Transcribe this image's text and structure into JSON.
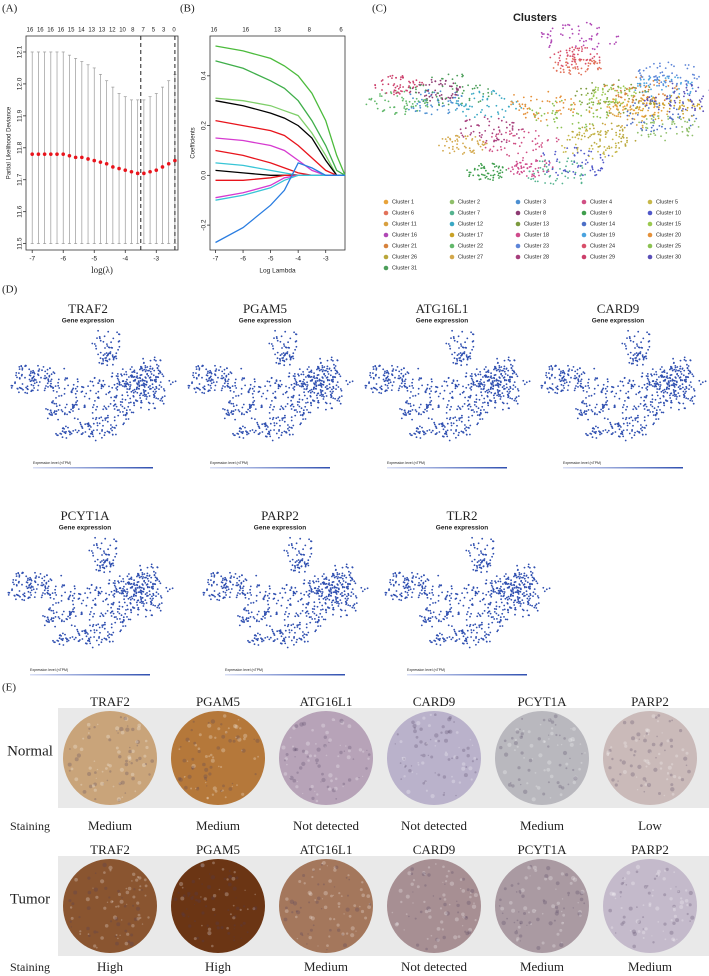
{
  "panel_a": {
    "label": "(A)",
    "top_labels": [
      16,
      16,
      16,
      16,
      15,
      14,
      13,
      13,
      12,
      10,
      8,
      7,
      5,
      3,
      0
    ],
    "x_label": "log(λ)",
    "y_label": "Partial Likelihood Deviance",
    "xlim": [
      -7.2,
      -2.3
    ],
    "ylim": [
      11.48,
      12.15
    ],
    "xticks": [
      -7,
      -6,
      -5,
      -4,
      -3
    ],
    "yticks": [
      11.5,
      11.6,
      11.7,
      11.8,
      11.9,
      {
        "value": 12.0,
        "label": "12.0"
      },
      12.1
    ],
    "x": [
      -7,
      -6.8,
      -6.6,
      -6.4,
      -6.2,
      -6,
      -5.8,
      -5.6,
      -5.4,
      -5.2,
      -5,
      -4.8,
      -4.6,
      -4.4,
      -4.2,
      -4,
      -3.8,
      -3.6,
      -3.4,
      -3.2,
      -3,
      -2.8,
      -2.6,
      -2.4
    ],
    "values": [
      11.78,
      11.78,
      11.78,
      11.78,
      11.78,
      11.78,
      11.775,
      11.77,
      11.77,
      11.765,
      11.76,
      11.755,
      11.75,
      11.74,
      11.735,
      11.73,
      11.725,
      11.72,
      11.72,
      11.725,
      11.73,
      11.74,
      11.75,
      11.76
    ],
    "upper": [
      12.1,
      12.1,
      12.1,
      12.1,
      12.1,
      12.1,
      12.09,
      12.08,
      12.07,
      12.06,
      12.05,
      12.03,
      12.01,
      11.99,
      11.97,
      11.96,
      11.95,
      11.95,
      11.95,
      11.96,
      11.97,
      11.99,
      12.01,
      12.03
    ],
    "lower": [
      11.5,
      11.5,
      11.5,
      11.5,
      11.5,
      11.5,
      11.5,
      11.5,
      11.5,
      11.5,
      11.5,
      11.5,
      11.5,
      11.5,
      11.5,
      11.5,
      11.5,
      11.5,
      11.5,
      11.5,
      11.5,
      11.5,
      11.5,
      11.5
    ],
    "point_color": "#e8141c",
    "vlines": [
      -3.5,
      -2.4
    ]
  },
  "panel_b": {
    "label": "(B)",
    "top_labels": [
      16,
      16,
      13,
      8,
      6
    ],
    "x_label": "Log Lambda",
    "y_label": "Coefficients",
    "xlim": [
      -7.2,
      -2.3
    ],
    "ylim": [
      -0.3,
      0.56
    ],
    "xticks": [
      -7,
      -6,
      -5,
      -4,
      -3
    ],
    "yticks": [
      -0.2,
      {
        "value": 0,
        "label": "0.0"
      },
      0.2,
      0.4
    ],
    "x": [
      -7,
      -6,
      -5,
      -4.5,
      -4,
      -3.5,
      -3,
      -2.6,
      -2.3
    ],
    "series": [
      {
        "color": "#4cbb3c",
        "values": [
          0.52,
          0.5,
          0.47,
          0.44,
          0.4,
          0.33,
          0.22,
          0.08,
          0
        ]
      },
      {
        "color": "#3fae4a",
        "values": [
          0.46,
          0.43,
          0.38,
          0.35,
          0.3,
          0.22,
          0.12,
          0.02,
          0
        ]
      },
      {
        "color": "#7fcf6a",
        "values": [
          0.31,
          0.3,
          0.28,
          0.26,
          0.24,
          0.17,
          0.08,
          0,
          0
        ]
      },
      {
        "color": "#000000",
        "values": [
          0.3,
          0.28,
          0.25,
          0.23,
          0.2,
          0.15,
          0.06,
          0,
          0
        ]
      },
      {
        "color": "#e8141c",
        "values": [
          0.22,
          0.2,
          0.18,
          0.16,
          0.12,
          0.07,
          0.02,
          0,
          0
        ]
      },
      {
        "color": "#d63ad0",
        "values": [
          0.15,
          0.14,
          0.12,
          0.1,
          0.06,
          0.02,
          0,
          0,
          0
        ]
      },
      {
        "color": "#e8141c",
        "values": [
          0.1,
          0.08,
          0.05,
          0.03,
          0.01,
          0,
          0,
          0,
          0
        ]
      },
      {
        "color": "#38c5d6",
        "values": [
          0.05,
          0.04,
          0.02,
          0.01,
          0,
          0,
          0,
          0,
          0
        ]
      },
      {
        "color": "#000000",
        "values": [
          0.02,
          0.01,
          0,
          0,
          0,
          0,
          0,
          0,
          0
        ]
      },
      {
        "color": "#e8141c",
        "values": [
          -0.02,
          -0.02,
          -0.01,
          0,
          0,
          0,
          0,
          0,
          0
        ]
      },
      {
        "color": "#d63ad0",
        "values": [
          -0.09,
          -0.07,
          -0.04,
          -0.01,
          0,
          0,
          0,
          0,
          0
        ]
      },
      {
        "color": "#38c5d6",
        "values": [
          -0.1,
          -0.08,
          -0.05,
          -0.02,
          0,
          0,
          0,
          0,
          0
        ]
      },
      {
        "color": "#2a7de1",
        "values": [
          -0.27,
          -0.21,
          -0.12,
          -0.06,
          0.05,
          0.03,
          0,
          0,
          0
        ]
      }
    ]
  },
  "panel_c": {
    "label": "(C)",
    "title": "Clusters",
    "clusters": [
      {
        "name": "Cluster 1",
        "color": "#e8a33a"
      },
      {
        "name": "Cluster 2",
        "color": "#8fbf6a"
      },
      {
        "name": "Cluster 3",
        "color": "#4c8fd1"
      },
      {
        "name": "Cluster 4",
        "color": "#d04f84"
      },
      {
        "name": "Cluster 5",
        "color": "#c7b84a"
      },
      {
        "name": "Cluster 6",
        "color": "#e2725b"
      },
      {
        "name": "Cluster 7",
        "color": "#55b38f"
      },
      {
        "name": "Cluster 8",
        "color": "#8d3b72"
      },
      {
        "name": "Cluster 9",
        "color": "#3f9e4d"
      },
      {
        "name": "Cluster 10",
        "color": "#5058c9"
      },
      {
        "name": "Cluster 11",
        "color": "#d8a040"
      },
      {
        "name": "Cluster 12",
        "color": "#3aa8c4"
      },
      {
        "name": "Cluster 13",
        "color": "#7c9a3e"
      },
      {
        "name": "Cluster 14",
        "color": "#4d6fc7"
      },
      {
        "name": "Cluster 15",
        "color": "#9bc94f"
      },
      {
        "name": "Cluster 16",
        "color": "#b048b5"
      },
      {
        "name": "Cluster 17",
        "color": "#c9a227"
      },
      {
        "name": "Cluster 18",
        "color": "#cf4b8c"
      },
      {
        "name": "Cluster 19",
        "color": "#4aa3df"
      },
      {
        "name": "Cluster 20",
        "color": "#e5913a"
      },
      {
        "name": "Cluster 21",
        "color": "#d7823c"
      },
      {
        "name": "Cluster 22",
        "color": "#62b86b"
      },
      {
        "name": "Cluster 23",
        "color": "#5d85d8"
      },
      {
        "name": "Cluster 24",
        "color": "#d84f6a"
      },
      {
        "name": "Cluster 25",
        "color": "#8cc252"
      },
      {
        "name": "Cluster 26",
        "color": "#b9a63a"
      },
      {
        "name": "Cluster 27",
        "color": "#d3a84c"
      },
      {
        "name": "Cluster 28",
        "color": "#a63e7c"
      },
      {
        "name": "Cluster 29",
        "color": "#cc3f6b"
      },
      {
        "name": "Cluster 30",
        "color": "#5a4fb8"
      },
      {
        "name": "Cluster 31",
        "color": "#4c9e5a"
      }
    ]
  },
  "panel_d": {
    "label": "(D)",
    "subtitle": "Gene expression",
    "scale_label": "Expression level (nTPM)",
    "genes": [
      "TRAF2",
      "PGAM5",
      "ATG16L1",
      "CARD9",
      "PCYT1A",
      "PARP2",
      "TLR2"
    ],
    "dot_color": "#2f4fb0"
  },
  "panel_e": {
    "label": "(E)",
    "staining_label": "Staining",
    "normal": {
      "label": "Normal",
      "genes": [
        "TRAF2",
        "PGAM5",
        "ATG16L1",
        "CARD9",
        "PCYT1A",
        "PARP2"
      ],
      "levels": [
        "Medium",
        "Medium",
        "Not detected",
        "Not detected",
        "Medium",
        "Low"
      ],
      "colors": [
        "#c9a47a",
        "#b5783a",
        "#b7a3b8",
        "#bab2cb",
        "#b9b8be",
        "#cabab9"
      ]
    },
    "tumor": {
      "label": "Tumor",
      "genes": [
        "TRAF2",
        "PGAM5",
        "ATG16L1",
        "CARD9",
        "PCYT1A",
        "PARP2"
      ],
      "levels": [
        "High",
        "High",
        "Medium",
        "Not detected",
        "Medium",
        "Medium"
      ],
      "colors": [
        "#8a5530",
        "#6b3514",
        "#a4775c",
        "#a78f93",
        "#aa9aa2",
        "#c4bacb"
      ]
    }
  }
}
